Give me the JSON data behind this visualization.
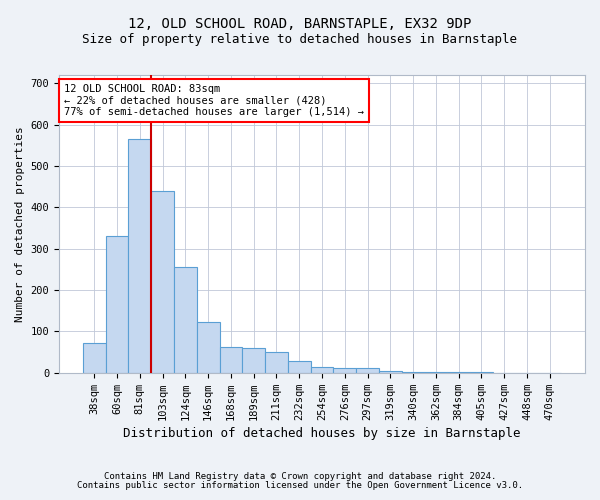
{
  "title": "12, OLD SCHOOL ROAD, BARNSTAPLE, EX32 9DP",
  "subtitle": "Size of property relative to detached houses in Barnstaple",
  "xlabel": "Distribution of detached houses by size in Barnstaple",
  "ylabel": "Number of detached properties",
  "categories": [
    "38sqm",
    "60sqm",
    "81sqm",
    "103sqm",
    "124sqm",
    "146sqm",
    "168sqm",
    "189sqm",
    "211sqm",
    "232sqm",
    "254sqm",
    "276sqm",
    "297sqm",
    "319sqm",
    "340sqm",
    "362sqm",
    "384sqm",
    "405sqm",
    "427sqm",
    "448sqm",
    "470sqm"
  ],
  "values": [
    72,
    330,
    565,
    440,
    255,
    122,
    63,
    60,
    50,
    28,
    14,
    12,
    12,
    4,
    3,
    3,
    3,
    1,
    0,
    0,
    0
  ],
  "bar_color": "#c5d8f0",
  "bar_edge_color": "#5a9fd4",
  "red_line_index": 2,
  "annotation_text": "12 OLD SCHOOL ROAD: 83sqm\n← 22% of detached houses are smaller (428)\n77% of semi-detached houses are larger (1,514) →",
  "annotation_box_color": "white",
  "annotation_box_edge_color": "red",
  "red_line_color": "#cc0000",
  "ylim": [
    0,
    720
  ],
  "yticks": [
    0,
    100,
    200,
    300,
    400,
    500,
    600,
    700
  ],
  "title_fontsize": 10,
  "subtitle_fontsize": 9,
  "xlabel_fontsize": 9,
  "ylabel_fontsize": 8,
  "tick_fontsize": 7.5,
  "annotation_fontsize": 7.5,
  "footer_fontsize": 6.5,
  "footer_line1": "Contains HM Land Registry data © Crown copyright and database right 2024.",
  "footer_line2": "Contains public sector information licensed under the Open Government Licence v3.0.",
  "background_color": "#eef2f7",
  "plot_background_color": "#ffffff"
}
